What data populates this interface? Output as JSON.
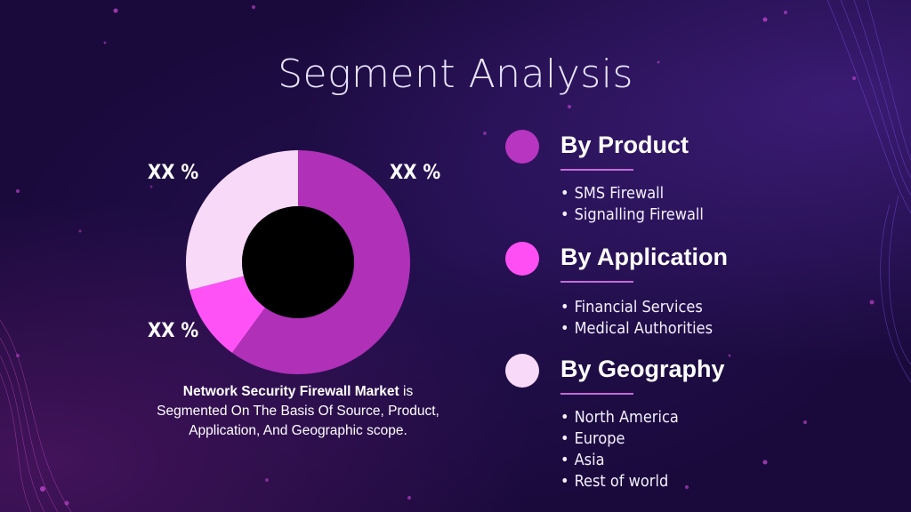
{
  "slide": {
    "title": "Segment Analysis",
    "caption_bold": "Network Security Firewall Market",
    "caption_rest": " is Segmented On The Basis Of Source, Product, Application, And Geographic scope."
  },
  "chart_data": {
    "type": "pie",
    "variant": "donut",
    "slices": [
      {
        "label": "XX %",
        "value": 60,
        "color": "#b030b8"
      },
      {
        "label": "XX %",
        "value": 11,
        "color": "#ff52f6"
      },
      {
        "label": "XX %",
        "value": 29,
        "color": "#f8d9f7"
      }
    ],
    "hole_color": "#000000"
  },
  "segments": [
    {
      "title": "By Product",
      "color": "#b735c0",
      "items": [
        "SMS Firewall",
        "Signalling Firewall"
      ]
    },
    {
      "title": "By Application",
      "color": "#ff4ff4",
      "items": [
        "Financial Services",
        "Medical Authorities"
      ]
    },
    {
      "title": "By Geography",
      "color": "#f8d9f7",
      "items": [
        "North America",
        "Europe",
        "Asia",
        "Rest of world"
      ]
    }
  ]
}
